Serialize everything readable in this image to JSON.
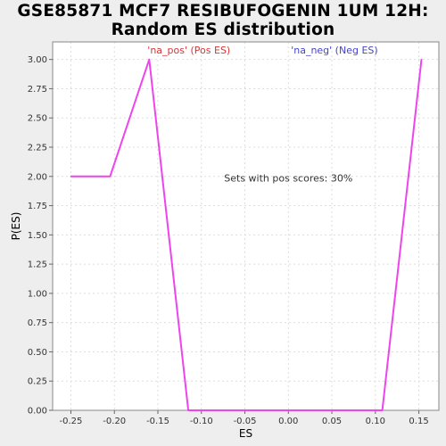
{
  "chart_data": {
    "type": "line",
    "title_lines": [
      "GSE85871 MCF7 RESIBUFOGENIN 1UM 12H:",
      "Random ES distribution"
    ],
    "xlabel": "ES",
    "ylabel": "P(ES)",
    "xlim": [
      -0.271,
      0.173
    ],
    "ylim": [
      0,
      3.15
    ],
    "x_ticks": [
      -0.25,
      -0.2,
      -0.15,
      -0.1,
      -0.05,
      0.0,
      0.05,
      0.1,
      0.15
    ],
    "x_tick_labels": [
      "-0.25",
      "-0.20",
      "-0.15",
      "-0.10",
      "-0.05",
      "0.00",
      "0.05",
      "0.10",
      "0.15"
    ],
    "y_ticks": [
      0,
      0.25,
      0.5,
      0.75,
      1.0,
      1.25,
      1.5,
      1.75,
      2.0,
      2.25,
      2.5,
      2.75,
      3.0
    ],
    "y_tick_labels": [
      "0.00",
      "0.25",
      "0.50",
      "0.75",
      "1.00",
      "1.25",
      "1.50",
      "1.75",
      "2.00",
      "2.25",
      "2.50",
      "2.75",
      "3.00"
    ],
    "grid": true,
    "legend": [
      {
        "label": "'na_pos' (Pos ES)",
        "color": "#dd3333"
      },
      {
        "label": "'na_neg' (Neg ES)",
        "color": "#4444cc"
      }
    ],
    "annotation": "Sets with pos scores: 30%",
    "series": [
      {
        "color": "#ee44ee",
        "x": [
          -0.25,
          -0.205,
          -0.16,
          -0.115,
          -0.07,
          -0.025,
          0.02,
          0.065,
          0.108,
          0.153
        ],
        "y": [
          2.0,
          2.0,
          3.0,
          0.0,
          0.0,
          0.0,
          0.0,
          0.0,
          0.0,
          3.0
        ]
      }
    ]
  }
}
